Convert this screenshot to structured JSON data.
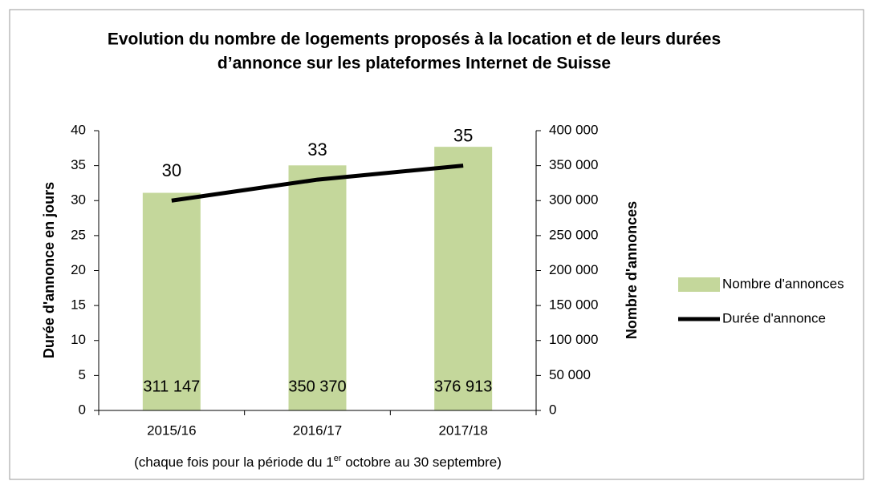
{
  "chart_data": {
    "type": "bar_line",
    "title": [
      "Evolution du nombre de logements proposés à la location et de leurs durées",
      "d’annonce sur les plateformes Internet de Suisse"
    ],
    "xlabel": [
      "(chaque fois pour la période du 1",
      "er",
      " octobre au 30 septembre)"
    ],
    "ylabel": "Durée d'annonce en jours",
    "y2label": "Nombre d'annonces",
    "categories": [
      "2015/16",
      "2016/17",
      "2017/18"
    ],
    "ylim": [
      0,
      40
    ],
    "yticks": [
      0,
      5,
      10,
      15,
      20,
      25,
      30,
      35,
      40
    ],
    "y2lim": [
      0,
      400000
    ],
    "y2ticks": [
      0,
      {
        "value": 50000,
        "label": "50 000"
      },
      {
        "value": 100000,
        "label": "100 000"
      },
      {
        "value": 150000,
        "label": "150 000"
      },
      {
        "value": 200000,
        "label": "200 000"
      },
      {
        "value": 250000,
        "label": "250 000"
      },
      {
        "value": 300000,
        "label": "300 000"
      },
      {
        "value": 350000,
        "label": "350 000"
      },
      {
        "value": 400000,
        "label": "400 000"
      }
    ],
    "legend": "right",
    "series": [
      {
        "name": "Nombre d'annonces",
        "type": "bar",
        "axis": "y2",
        "color": "#c4d79b",
        "values": [
          311147,
          350370,
          376913
        ],
        "value_labels": [
          "311 147",
          "350 370",
          "376 913"
        ]
      },
      {
        "name": "Durée d'annonce",
        "type": "line",
        "axis": "y",
        "color": "#000000",
        "values": [
          30,
          33,
          35
        ]
      }
    ]
  }
}
